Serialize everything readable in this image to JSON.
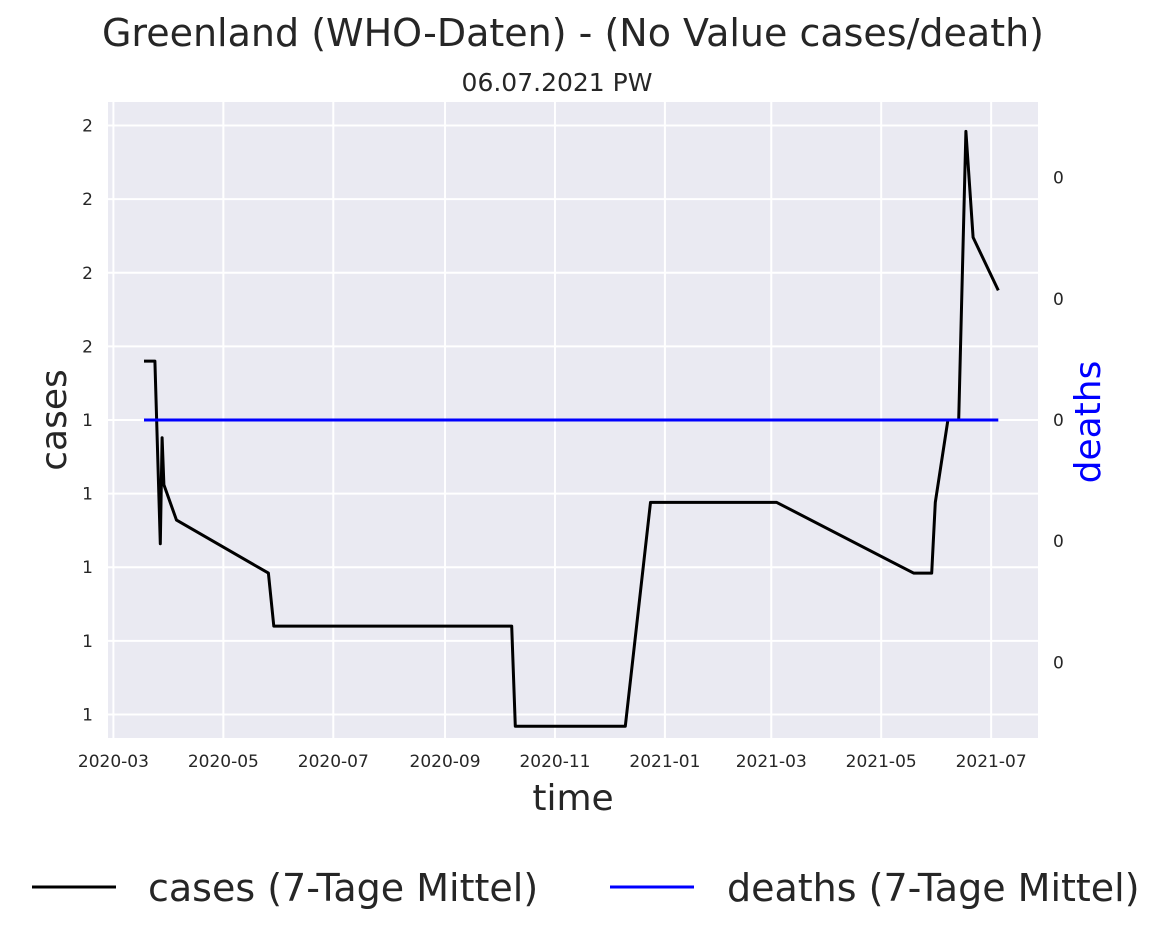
{
  "chart_data": {
    "type": "line",
    "title": "Greenland (WHO-Daten) - (No Value cases/death)",
    "subtitle": "06.07.2021 PW",
    "xlabel": "time",
    "ylabel_left": "cases",
    "ylabel_right": "deaths",
    "x_ticks": [
      "2020-03",
      "2020-05",
      "2020-07",
      "2020-09",
      "2020-11",
      "2021-01",
      "2021-03",
      "2021-05",
      "2021-07"
    ],
    "x_range": [
      "2020-02-27",
      "2021-07-27"
    ],
    "y_left_ticks": [
      "1",
      "1",
      "1",
      "1",
      "1",
      "2",
      "2",
      "2",
      "2"
    ],
    "y_left_range": [
      0.96,
      2.04
    ],
    "y_right_ticks": [
      "0",
      "0",
      "0",
      "0",
      "0"
    ],
    "y_right_range": [
      -1.05,
      1.05
    ],
    "grid": true,
    "legend_position": "below",
    "colors": {
      "plot_background": "#eaeaf2",
      "grid": "#ffffff",
      "cases": "#000000",
      "deaths": "#0000ff",
      "right_label": "#0000ff"
    },
    "series": [
      {
        "name": "cases (7-Tage Mittel)",
        "axis": "left",
        "color": "#000000",
        "points": [
          [
            "2020-03-18",
            1.6
          ],
          [
            "2020-03-24",
            1.6
          ],
          [
            "2020-03-27",
            1.29
          ],
          [
            "2020-03-28",
            1.47
          ],
          [
            "2020-03-29",
            1.39
          ],
          [
            "2020-04-05",
            1.33
          ],
          [
            "2020-05-26",
            1.24
          ],
          [
            "2020-05-29",
            1.15
          ],
          [
            "2020-10-08",
            1.15
          ],
          [
            "2020-10-10",
            0.98
          ],
          [
            "2020-12-10",
            0.98
          ],
          [
            "2020-12-24",
            1.36
          ],
          [
            "2021-03-04",
            1.36
          ],
          [
            "2021-05-19",
            1.24
          ],
          [
            "2021-05-29",
            1.24
          ],
          [
            "2021-05-31",
            1.36
          ],
          [
            "2021-06-07",
            1.5
          ],
          [
            "2021-06-13",
            1.5
          ],
          [
            "2021-06-17",
            1.99
          ],
          [
            "2021-06-21",
            1.81
          ],
          [
            "2021-07-05",
            1.72
          ]
        ]
      },
      {
        "name": "deaths (7-Tage Mittel)",
        "axis": "right",
        "color": "#0000ff",
        "points": [
          [
            "2020-03-18",
            0
          ],
          [
            "2021-07-05",
            0
          ]
        ]
      }
    ]
  }
}
